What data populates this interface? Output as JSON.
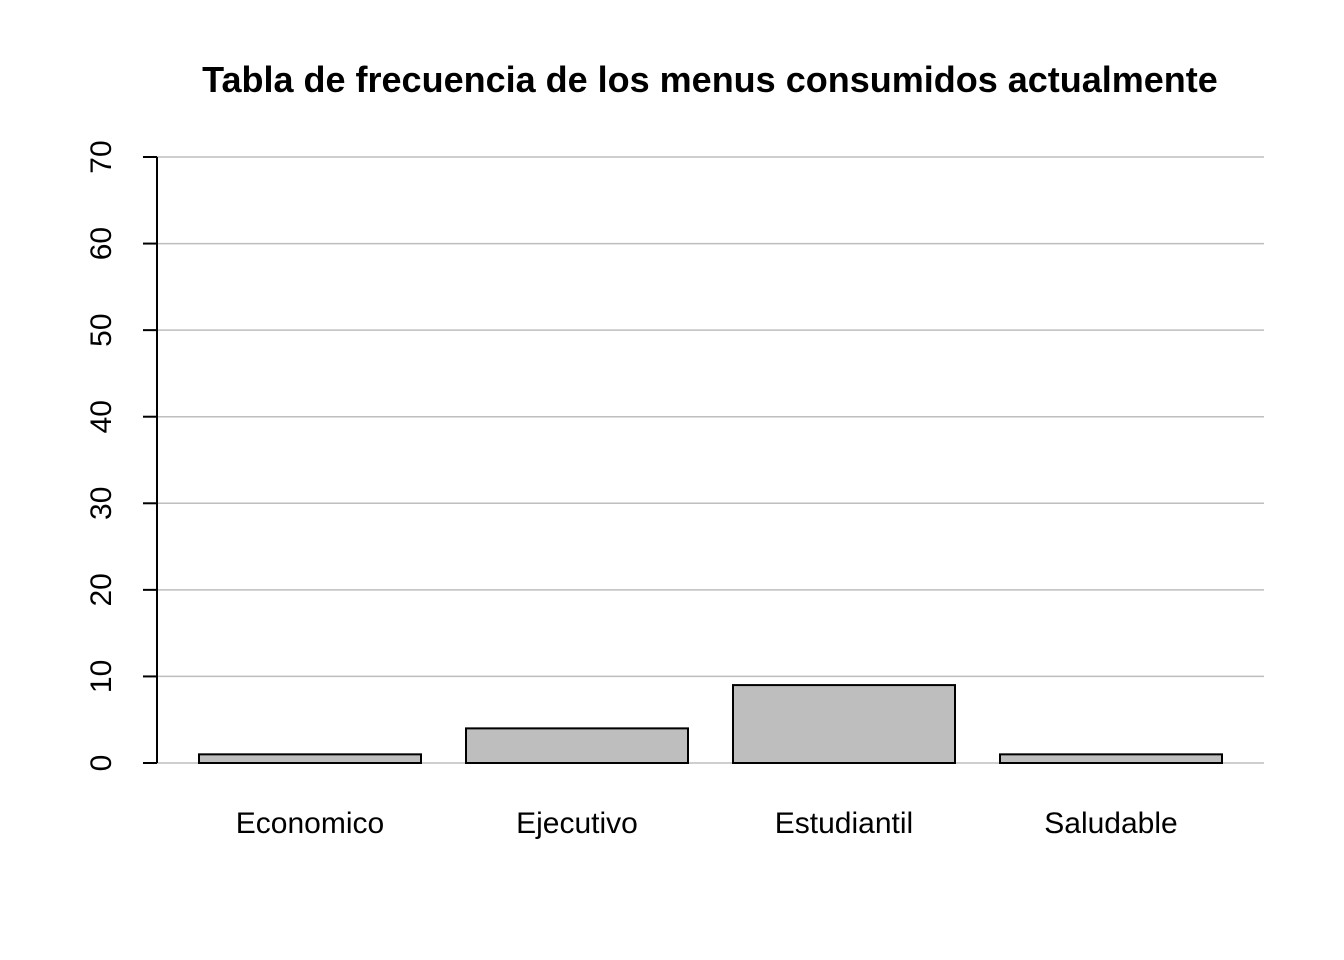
{
  "chart_data": {
    "type": "bar",
    "title": "Tabla de frecuencia de los menus consumidos actualmente",
    "xlabel": "",
    "ylabel": "",
    "categories": [
      "Economico",
      "Ejecutivo",
      "Estudiantil",
      "Saludable"
    ],
    "values": [
      1,
      4,
      9,
      1
    ],
    "ylim": [
      0,
      70
    ],
    "yticks": [
      0,
      10,
      20,
      30,
      40,
      50,
      60,
      70
    ],
    "grid": true,
    "legend": "none",
    "colors": {
      "bar_fill": "#bebebe",
      "bar_stroke": "#000000",
      "grid": "#bebebe",
      "axis": "#000000"
    }
  }
}
